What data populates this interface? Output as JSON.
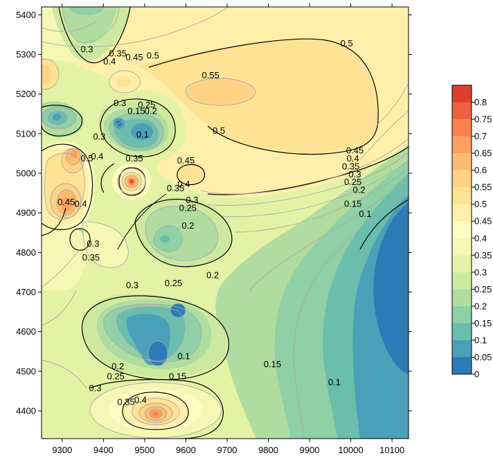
{
  "chart_data": {
    "type": "filled-contour",
    "title": "",
    "xlabel": "",
    "ylabel": "",
    "xlim": [
      9250,
      10140
    ],
    "ylim": [
      4330,
      5420
    ],
    "x_ticks": [
      "9300",
      "9400",
      "9500",
      "9600",
      "9700",
      "9800",
      "9900",
      "10000",
      "10100"
    ],
    "x_tick_values": [
      9300,
      9400,
      9500,
      9600,
      9700,
      9800,
      9900,
      10000,
      10100
    ],
    "y_ticks": [
      "4400",
      "4500",
      "4600",
      "4700",
      "4800",
      "4900",
      "5000",
      "5100",
      "5200",
      "5300",
      "5400"
    ],
    "y_tick_values": [
      4400,
      4500,
      4600,
      4700,
      4800,
      4900,
      5000,
      5100,
      5200,
      5300,
      5400
    ],
    "levels": [
      0,
      0.05,
      0.1,
      0.15,
      0.2,
      0.25,
      0.3,
      0.35,
      0.4,
      0.45,
      0.5,
      0.55,
      0.6,
      0.65,
      0.7,
      0.75,
      0.8,
      0.85
    ],
    "colorbar_labels": [
      "0",
      "0.05",
      "0.1",
      "0.15",
      "0.2",
      "0.25",
      "0.3",
      "0.35",
      "0.4",
      "0.45",
      "0.5",
      "0.55",
      "0.6",
      "0.65",
      "0.7",
      "0.75",
      "0.8"
    ],
    "palette": [
      "#2c7bb6",
      "#4aa0b8",
      "#6bbdae",
      "#8fd0a6",
      "#b0dd9f",
      "#cde9a0",
      "#e4f2a6",
      "#f5f8b4",
      "#fffcc2",
      "#ffefaa",
      "#fee395",
      "#fed385",
      "#fdbb70",
      "#fba05f",
      "#f6814d",
      "#ed6042",
      "#dd3e2e"
    ],
    "contour_labels": [
      {
        "text": "0.5",
        "x": 9990,
        "y": 5320
      },
      {
        "text": "0.55",
        "x": 9660,
        "y": 5240
      },
      {
        "text": "0.5",
        "x": 9680,
        "y": 5100
      },
      {
        "text": "0.5",
        "x": 9520,
        "y": 5290
      },
      {
        "text": "0.45",
        "x": 9475,
        "y": 5285
      },
      {
        "text": "0.4",
        "x": 9415,
        "y": 5275
      },
      {
        "text": "0.35",
        "x": 9435,
        "y": 5295
      },
      {
        "text": "0.3",
        "x": 9360,
        "y": 5305
      },
      {
        "text": "0.3",
        "x": 9440,
        "y": 5170
      },
      {
        "text": "0.25",
        "x": 9505,
        "y": 5165
      },
      {
        "text": "0.2",
        "x": 9515,
        "y": 5150
      },
      {
        "text": "0.15",
        "x": 9480,
        "y": 5150
      },
      {
        "text": "0.1",
        "x": 9495,
        "y": 5090
      },
      {
        "text": "0.3",
        "x": 9390,
        "y": 5085
      },
      {
        "text": "0.5",
        "x": 9360,
        "y": 5030
      },
      {
        "text": "0.4",
        "x": 9385,
        "y": 5035
      },
      {
        "text": "0.35",
        "x": 9475,
        "y": 5030
      },
      {
        "text": "0.45",
        "x": 9600,
        "y": 5025
      },
      {
        "text": "0.4",
        "x": 9595,
        "y": 4965
      },
      {
        "text": "0.35",
        "x": 9575,
        "y": 4955
      },
      {
        "text": "0.3",
        "x": 9615,
        "y": 4925
      },
      {
        "text": "0.25",
        "x": 9605,
        "y": 4905
      },
      {
        "text": "0.2",
        "x": 9605,
        "y": 4860
      },
      {
        "text": "0.45",
        "x": 9310,
        "y": 4920
      },
      {
        "text": "0.4",
        "x": 9345,
        "y": 4915
      },
      {
        "text": "0.3",
        "x": 9375,
        "y": 4815
      },
      {
        "text": "0.35",
        "x": 9370,
        "y": 4780
      },
      {
        "text": "0.45",
        "x": 10010,
        "y": 5050
      },
      {
        "text": "0.4",
        "x": 10005,
        "y": 5030
      },
      {
        "text": "0.35",
        "x": 10000,
        "y": 5010
      },
      {
        "text": "0.3",
        "x": 10010,
        "y": 4990
      },
      {
        "text": "0.25",
        "x": 10005,
        "y": 4970
      },
      {
        "text": "0.2",
        "x": 10020,
        "y": 4950
      },
      {
        "text": "0.15",
        "x": 10005,
        "y": 4915
      },
      {
        "text": "0.1",
        "x": 10035,
        "y": 4890
      },
      {
        "text": "0.3",
        "x": 9470,
        "y": 4710
      },
      {
        "text": "0.25",
        "x": 9570,
        "y": 4715
      },
      {
        "text": "0.2",
        "x": 9665,
        "y": 4735
      },
      {
        "text": "0.1",
        "x": 9595,
        "y": 4530
      },
      {
        "text": "0.15",
        "x": 9580,
        "y": 4480
      },
      {
        "text": "0.2",
        "x": 9435,
        "y": 4505
      },
      {
        "text": "0.25",
        "x": 9430,
        "y": 4480
      },
      {
        "text": "0.3",
        "x": 9380,
        "y": 4450
      },
      {
        "text": "0.35",
        "x": 9455,
        "y": 4415
      },
      {
        "text": "0.4",
        "x": 9490,
        "y": 4420
      },
      {
        "text": "0.15",
        "x": 9810,
        "y": 4510
      },
      {
        "text": "0.1",
        "x": 9960,
        "y": 4465
      }
    ]
  }
}
